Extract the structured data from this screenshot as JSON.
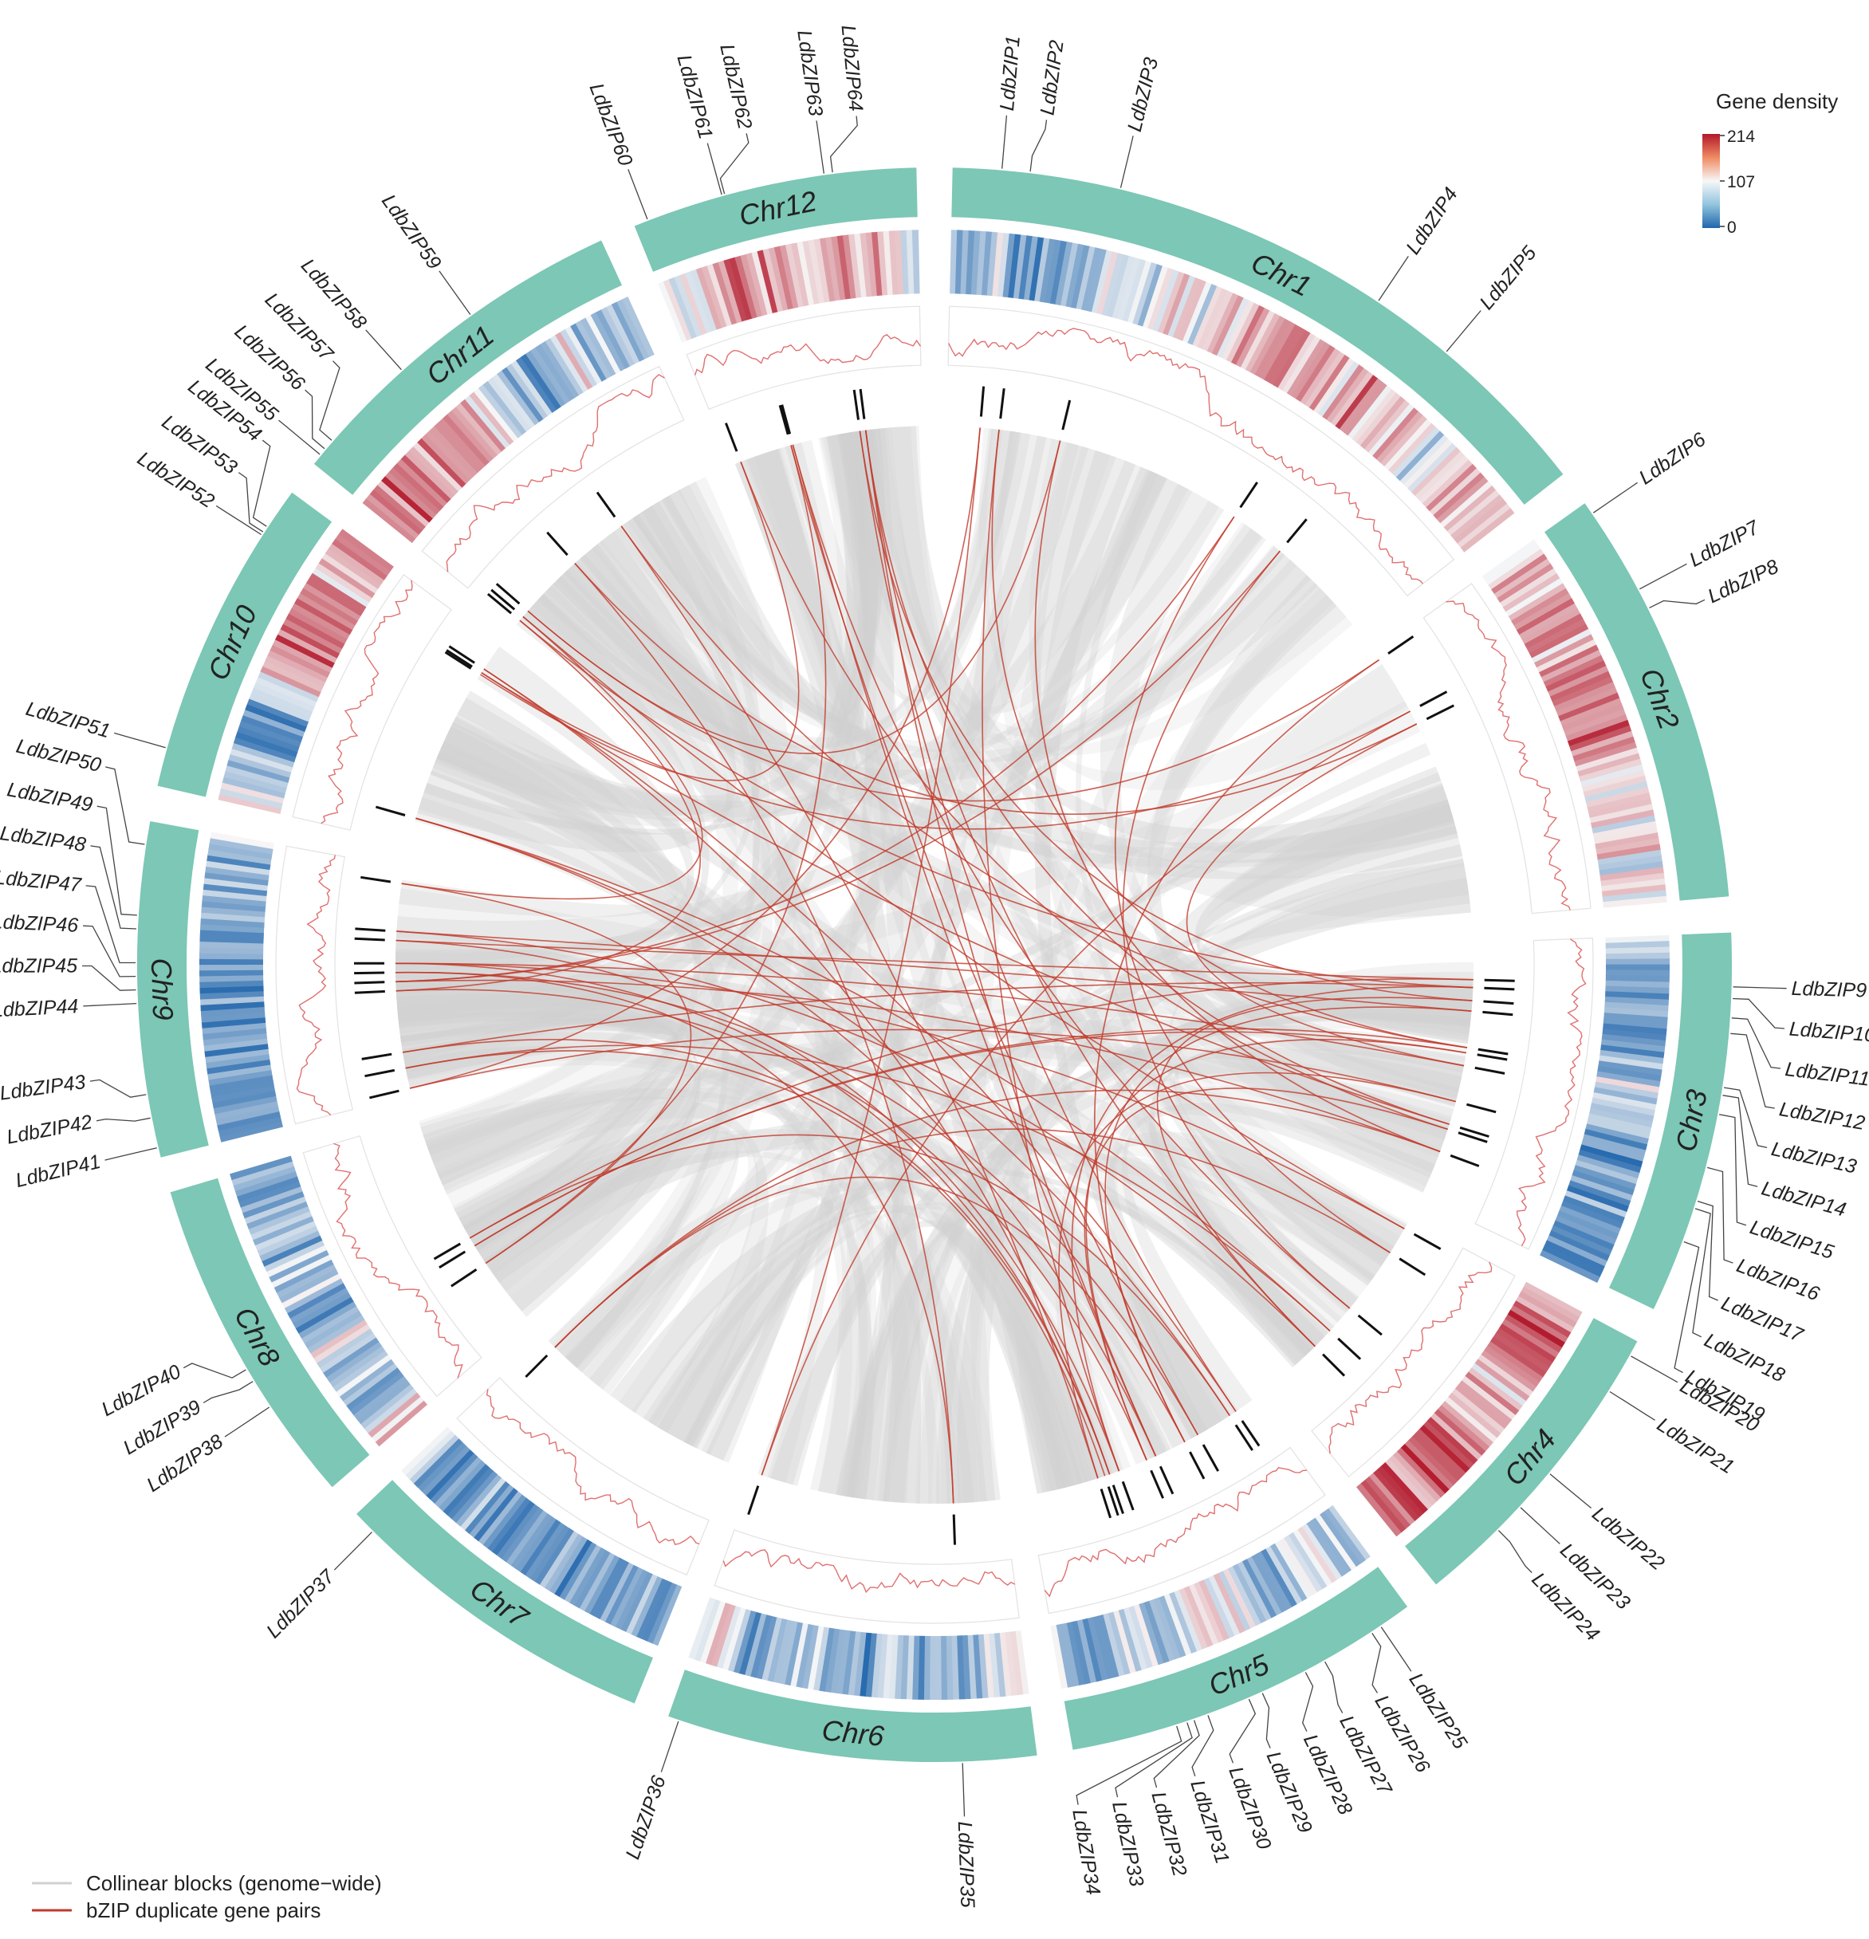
{
  "chromosomes": [
    {
      "name": "Chr1",
      "length": 1.0
    },
    {
      "name": "Chr2",
      "length": 0.6
    },
    {
      "name": "Chr3",
      "length": 0.55
    },
    {
      "name": "Chr4",
      "length": 0.45
    },
    {
      "name": "Chr5",
      "length": 0.52
    },
    {
      "name": "Chr6",
      "length": 0.53
    },
    {
      "name": "Chr7",
      "length": 0.48
    },
    {
      "name": "Chr8",
      "length": 0.48
    },
    {
      "name": "Chr9",
      "length": 0.48
    },
    {
      "name": "Chr10",
      "length": 0.46
    },
    {
      "name": "Chr11",
      "length": 0.52
    },
    {
      "name": "Chr12",
      "length": 0.41
    }
  ],
  "genes": [
    {
      "name": "LdbZIP1",
      "chr": 0,
      "pos": 0.07
    },
    {
      "name": "LdbZIP2",
      "chr": 0,
      "pos": 0.11
    },
    {
      "name": "LdbZIP3",
      "chr": 0,
      "pos": 0.24
    },
    {
      "name": "LdbZIP4",
      "chr": 0,
      "pos": 0.64
    },
    {
      "name": "LdbZIP5",
      "chr": 0,
      "pos": 0.76
    },
    {
      "name": "LdbZIP6",
      "chr": 1,
      "pos": 0.03
    },
    {
      "name": "LdbZIP7",
      "chr": 1,
      "pos": 0.24
    },
    {
      "name": "LdbZIP8",
      "chr": 1,
      "pos": 0.29
    },
    {
      "name": "LdbZIP9",
      "chr": 2,
      "pos": 0.14
    },
    {
      "name": "LdbZIP10",
      "chr": 2,
      "pos": 0.17
    },
    {
      "name": "LdbZIP11",
      "chr": 2,
      "pos": 0.22
    },
    {
      "name": "LdbZIP12",
      "chr": 2,
      "pos": 0.26
    },
    {
      "name": "LdbZIP13",
      "chr": 2,
      "pos": 0.4
    },
    {
      "name": "LdbZIP14",
      "chr": 2,
      "pos": 0.42
    },
    {
      "name": "LdbZIP15",
      "chr": 2,
      "pos": 0.47
    },
    {
      "name": "LdbZIP16",
      "chr": 2,
      "pos": 0.61
    },
    {
      "name": "LdbZIP17",
      "chr": 2,
      "pos": 0.7
    },
    {
      "name": "LdbZIP18",
      "chr": 2,
      "pos": 0.72
    },
    {
      "name": "LdbZIP19",
      "chr": 2,
      "pos": 0.81
    },
    {
      "name": "LdbZIP20",
      "chr": 3,
      "pos": 0.05
    },
    {
      "name": "LdbZIP21",
      "chr": 3,
      "pos": 0.18
    },
    {
      "name": "LdbZIP22",
      "chr": 3,
      "pos": 0.5
    },
    {
      "name": "LdbZIP23",
      "chr": 3,
      "pos": 0.64
    },
    {
      "name": "LdbZIP24",
      "chr": 3,
      "pos": 0.74
    },
    {
      "name": "LdbZIP25",
      "chr": 4,
      "pos": 0.09
    },
    {
      "name": "LdbZIP26",
      "chr": 4,
      "pos": 0.12
    },
    {
      "name": "LdbZIP27",
      "chr": 4,
      "pos": 0.27
    },
    {
      "name": "LdbZIP28",
      "chr": 4,
      "pos": 0.33
    },
    {
      "name": "LdbZIP29",
      "chr": 4,
      "pos": 0.46
    },
    {
      "name": "LdbZIP30",
      "chr": 4,
      "pos": 0.5
    },
    {
      "name": "LdbZIP31",
      "chr": 4,
      "pos": 0.62
    },
    {
      "name": "LdbZIP32",
      "chr": 4,
      "pos": 0.66
    },
    {
      "name": "LdbZIP33",
      "chr": 4,
      "pos": 0.68
    },
    {
      "name": "LdbZIP34",
      "chr": 4,
      "pos": 0.71
    },
    {
      "name": "LdbZIP35",
      "chr": 5,
      "pos": 0.2
    },
    {
      "name": "LdbZIP36",
      "chr": 5,
      "pos": 0.97
    },
    {
      "name": "LdbZIP37",
      "chr": 6,
      "pos": 0.93
    },
    {
      "name": "LdbZIP38",
      "chr": 7,
      "pos": 0.3
    },
    {
      "name": "LdbZIP39",
      "chr": 7,
      "pos": 0.39
    },
    {
      "name": "LdbZIP40",
      "chr": 7,
      "pos": 0.43
    },
    {
      "name": "LdbZIP41",
      "chr": 8,
      "pos": 0.03
    },
    {
      "name": "LdbZIP42",
      "chr": 8,
      "pos": 0.12
    },
    {
      "name": "LdbZIP43",
      "chr": 8,
      "pos": 0.19
    },
    {
      "name": "LdbZIP44",
      "chr": 8,
      "pos": 0.46
    },
    {
      "name": "LdbZIP45",
      "chr": 8,
      "pos": 0.5
    },
    {
      "name": "LdbZIP46",
      "chr": 8,
      "pos": 0.54
    },
    {
      "name": "LdbZIP47",
      "chr": 8,
      "pos": 0.58
    },
    {
      "name": "LdbZIP48",
      "chr": 8,
      "pos": 0.68
    },
    {
      "name": "LdbZIP49",
      "chr": 8,
      "pos": 0.72
    },
    {
      "name": "LdbZIP50",
      "chr": 8,
      "pos": 0.93
    },
    {
      "name": "LdbZIP51",
      "chr": 9,
      "pos": 0.12
    },
    {
      "name": "LdbZIP52",
      "chr": 9,
      "pos": 0.84
    },
    {
      "name": "LdbZIP53",
      "chr": 9,
      "pos": 0.85
    },
    {
      "name": "LdbZIP54",
      "chr": 9,
      "pos": 0.87
    },
    {
      "name": "LdbZIP55",
      "chr": 10,
      "pos": 0.03
    },
    {
      "name": "LdbZIP56",
      "chr": 10,
      "pos": 0.05
    },
    {
      "name": "LdbZIP57",
      "chr": 10,
      "pos": 0.08
    },
    {
      "name": "LdbZIP58",
      "chr": 10,
      "pos": 0.35
    },
    {
      "name": "LdbZIP59",
      "chr": 10,
      "pos": 0.59
    },
    {
      "name": "LdbZIP60",
      "chr": 11,
      "pos": 0.05
    },
    {
      "name": "LdbZIP61",
      "chr": 11,
      "pos": 0.32
    },
    {
      "name": "LdbZIP62",
      "chr": 11,
      "pos": 0.33
    },
    {
      "name": "LdbZIP63",
      "chr": 11,
      "pos": 0.68
    },
    {
      "name": "LdbZIP64",
      "chr": 11,
      "pos": 0.71
    }
  ],
  "duplicate_pairs": [
    [
      0,
      40
    ],
    [
      1,
      30
    ],
    [
      2,
      56
    ],
    [
      3,
      20
    ],
    [
      4,
      44
    ],
    [
      5,
      27
    ],
    [
      6,
      35
    ],
    [
      7,
      14
    ],
    [
      8,
      47
    ],
    [
      9,
      42
    ],
    [
      10,
      23
    ],
    [
      11,
      48
    ],
    [
      12,
      58
    ],
    [
      13,
      38
    ],
    [
      15,
      33
    ],
    [
      16,
      52
    ],
    [
      17,
      29
    ],
    [
      18,
      36
    ],
    [
      19,
      46
    ],
    [
      21,
      61
    ],
    [
      22,
      50
    ],
    [
      24,
      62
    ],
    [
      25,
      39
    ],
    [
      26,
      45
    ],
    [
      28,
      63
    ],
    [
      31,
      53
    ],
    [
      32,
      41
    ],
    [
      34,
      57
    ],
    [
      37,
      60
    ],
    [
      43,
      54
    ],
    [
      49,
      55
    ],
    [
      51,
      59
    ],
    [
      1,
      12
    ],
    [
      3,
      44
    ],
    [
      9,
      30
    ],
    [
      11,
      27
    ],
    [
      14,
      46
    ],
    [
      20,
      36
    ],
    [
      23,
      48
    ],
    [
      28,
      61
    ],
    [
      31,
      42
    ],
    [
      33,
      58
    ],
    [
      2,
      18
    ],
    [
      6,
      52
    ],
    [
      16,
      63
    ],
    [
      25,
      50
    ],
    [
      29,
      43
    ],
    [
      0,
      35
    ],
    [
      5,
      56
    ],
    [
      8,
      39
    ],
    [
      13,
      29
    ],
    [
      19,
      55
    ],
    [
      22,
      41
    ],
    [
      24,
      53
    ],
    [
      26,
      60
    ],
    [
      30,
      47
    ],
    [
      34,
      45
    ],
    [
      37,
      49
    ],
    [
      10,
      62
    ],
    [
      17,
      59
    ],
    [
      4,
      21
    ],
    [
      15,
      40
    ],
    [
      7,
      57
    ],
    [
      12,
      38
    ],
    [
      18,
      44
    ],
    [
      28,
      50
    ],
    [
      31,
      46
    ],
    [
      27,
      36
    ],
    [
      9,
      54
    ],
    [
      23,
      63
    ]
  ],
  "legend": {
    "title": "Gene density",
    "max_label": "214",
    "mid_label": "107",
    "min_label": "0",
    "max": 214,
    "colors": {
      "high": "#b2182b",
      "mid": "#f7f7f7",
      "low": "#2166ac"
    }
  },
  "key": {
    "collinear_label": "Collinear blocks (genome−wide)",
    "bzip_label": "bZIP duplicate gene pairs",
    "collinear_color": "#d0d0d0",
    "bzip_color": "#c0392b"
  },
  "colors": {
    "chromosome": "#7cc7b5",
    "density_line": "#e07070",
    "tick": "#111111"
  }
}
